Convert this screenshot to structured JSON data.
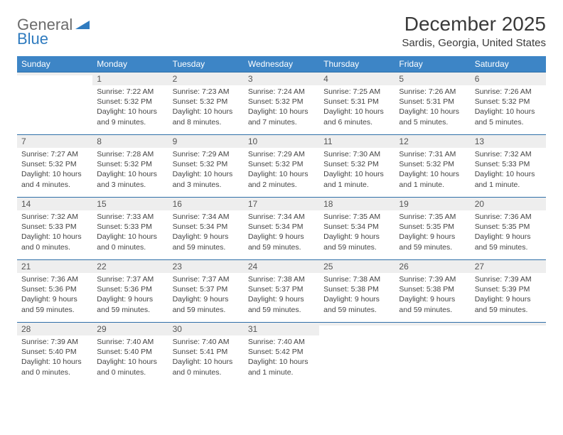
{
  "logo": {
    "general": "General",
    "blue": "Blue"
  },
  "title": "December 2025",
  "location": "Sardis, Georgia, United States",
  "colors": {
    "header_bg": "#3d85c6",
    "header_text": "#ffffff",
    "daynum_bg": "#eeeeee",
    "rule": "#2f6fa8",
    "logo_gray": "#6b6b6b",
    "logo_blue": "#2f7bbf"
  },
  "day_headers": [
    "Sunday",
    "Monday",
    "Tuesday",
    "Wednesday",
    "Thursday",
    "Friday",
    "Saturday"
  ],
  "weeks": [
    [
      {
        "n": "",
        "sr": "",
        "ss": "",
        "dl": ""
      },
      {
        "n": "1",
        "sr": "Sunrise: 7:22 AM",
        "ss": "Sunset: 5:32 PM",
        "dl": "Daylight: 10 hours and 9 minutes."
      },
      {
        "n": "2",
        "sr": "Sunrise: 7:23 AM",
        "ss": "Sunset: 5:32 PM",
        "dl": "Daylight: 10 hours and 8 minutes."
      },
      {
        "n": "3",
        "sr": "Sunrise: 7:24 AM",
        "ss": "Sunset: 5:32 PM",
        "dl": "Daylight: 10 hours and 7 minutes."
      },
      {
        "n": "4",
        "sr": "Sunrise: 7:25 AM",
        "ss": "Sunset: 5:31 PM",
        "dl": "Daylight: 10 hours and 6 minutes."
      },
      {
        "n": "5",
        "sr": "Sunrise: 7:26 AM",
        "ss": "Sunset: 5:31 PM",
        "dl": "Daylight: 10 hours and 5 minutes."
      },
      {
        "n": "6",
        "sr": "Sunrise: 7:26 AM",
        "ss": "Sunset: 5:32 PM",
        "dl": "Daylight: 10 hours and 5 minutes."
      }
    ],
    [
      {
        "n": "7",
        "sr": "Sunrise: 7:27 AM",
        "ss": "Sunset: 5:32 PM",
        "dl": "Daylight: 10 hours and 4 minutes."
      },
      {
        "n": "8",
        "sr": "Sunrise: 7:28 AM",
        "ss": "Sunset: 5:32 PM",
        "dl": "Daylight: 10 hours and 3 minutes."
      },
      {
        "n": "9",
        "sr": "Sunrise: 7:29 AM",
        "ss": "Sunset: 5:32 PM",
        "dl": "Daylight: 10 hours and 3 minutes."
      },
      {
        "n": "10",
        "sr": "Sunrise: 7:29 AM",
        "ss": "Sunset: 5:32 PM",
        "dl": "Daylight: 10 hours and 2 minutes."
      },
      {
        "n": "11",
        "sr": "Sunrise: 7:30 AM",
        "ss": "Sunset: 5:32 PM",
        "dl": "Daylight: 10 hours and 1 minute."
      },
      {
        "n": "12",
        "sr": "Sunrise: 7:31 AM",
        "ss": "Sunset: 5:32 PM",
        "dl": "Daylight: 10 hours and 1 minute."
      },
      {
        "n": "13",
        "sr": "Sunrise: 7:32 AM",
        "ss": "Sunset: 5:33 PM",
        "dl": "Daylight: 10 hours and 1 minute."
      }
    ],
    [
      {
        "n": "14",
        "sr": "Sunrise: 7:32 AM",
        "ss": "Sunset: 5:33 PM",
        "dl": "Daylight: 10 hours and 0 minutes."
      },
      {
        "n": "15",
        "sr": "Sunrise: 7:33 AM",
        "ss": "Sunset: 5:33 PM",
        "dl": "Daylight: 10 hours and 0 minutes."
      },
      {
        "n": "16",
        "sr": "Sunrise: 7:34 AM",
        "ss": "Sunset: 5:34 PM",
        "dl": "Daylight: 9 hours and 59 minutes."
      },
      {
        "n": "17",
        "sr": "Sunrise: 7:34 AM",
        "ss": "Sunset: 5:34 PM",
        "dl": "Daylight: 9 hours and 59 minutes."
      },
      {
        "n": "18",
        "sr": "Sunrise: 7:35 AM",
        "ss": "Sunset: 5:34 PM",
        "dl": "Daylight: 9 hours and 59 minutes."
      },
      {
        "n": "19",
        "sr": "Sunrise: 7:35 AM",
        "ss": "Sunset: 5:35 PM",
        "dl": "Daylight: 9 hours and 59 minutes."
      },
      {
        "n": "20",
        "sr": "Sunrise: 7:36 AM",
        "ss": "Sunset: 5:35 PM",
        "dl": "Daylight: 9 hours and 59 minutes."
      }
    ],
    [
      {
        "n": "21",
        "sr": "Sunrise: 7:36 AM",
        "ss": "Sunset: 5:36 PM",
        "dl": "Daylight: 9 hours and 59 minutes."
      },
      {
        "n": "22",
        "sr": "Sunrise: 7:37 AM",
        "ss": "Sunset: 5:36 PM",
        "dl": "Daylight: 9 hours and 59 minutes."
      },
      {
        "n": "23",
        "sr": "Sunrise: 7:37 AM",
        "ss": "Sunset: 5:37 PM",
        "dl": "Daylight: 9 hours and 59 minutes."
      },
      {
        "n": "24",
        "sr": "Sunrise: 7:38 AM",
        "ss": "Sunset: 5:37 PM",
        "dl": "Daylight: 9 hours and 59 minutes."
      },
      {
        "n": "25",
        "sr": "Sunrise: 7:38 AM",
        "ss": "Sunset: 5:38 PM",
        "dl": "Daylight: 9 hours and 59 minutes."
      },
      {
        "n": "26",
        "sr": "Sunrise: 7:39 AM",
        "ss": "Sunset: 5:38 PM",
        "dl": "Daylight: 9 hours and 59 minutes."
      },
      {
        "n": "27",
        "sr": "Sunrise: 7:39 AM",
        "ss": "Sunset: 5:39 PM",
        "dl": "Daylight: 9 hours and 59 minutes."
      }
    ],
    [
      {
        "n": "28",
        "sr": "Sunrise: 7:39 AM",
        "ss": "Sunset: 5:40 PM",
        "dl": "Daylight: 10 hours and 0 minutes."
      },
      {
        "n": "29",
        "sr": "Sunrise: 7:40 AM",
        "ss": "Sunset: 5:40 PM",
        "dl": "Daylight: 10 hours and 0 minutes."
      },
      {
        "n": "30",
        "sr": "Sunrise: 7:40 AM",
        "ss": "Sunset: 5:41 PM",
        "dl": "Daylight: 10 hours and 0 minutes."
      },
      {
        "n": "31",
        "sr": "Sunrise: 7:40 AM",
        "ss": "Sunset: 5:42 PM",
        "dl": "Daylight: 10 hours and 1 minute."
      },
      {
        "n": "",
        "sr": "",
        "ss": "",
        "dl": ""
      },
      {
        "n": "",
        "sr": "",
        "ss": "",
        "dl": ""
      },
      {
        "n": "",
        "sr": "",
        "ss": "",
        "dl": ""
      }
    ]
  ]
}
